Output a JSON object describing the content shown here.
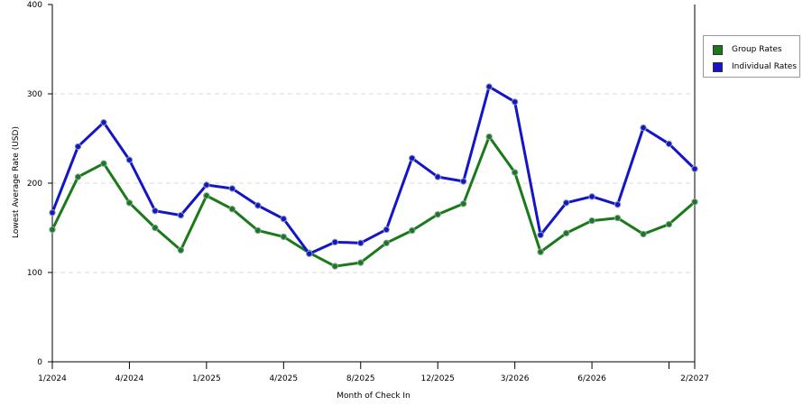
{
  "chart_data": {
    "type": "line",
    "xlabel": "Month of Check In",
    "ylabel": "Lowest Average Rate (USD)",
    "ylim": [
      0,
      400
    ],
    "yticks": [
      0,
      100,
      200,
      300,
      400
    ],
    "x_tick_labels": [
      "1/2024",
      "4/2024",
      "1/2025",
      "4/2025",
      "8/2025",
      "12/2025",
      "3/2026",
      "6/2026",
      "2/2027"
    ],
    "grid": "horizontal dashed",
    "legend_position": "right",
    "series": [
      {
        "name": "Group Rates",
        "color": "#1a7a1a",
        "values": [
          148,
          207,
          222,
          178,
          150,
          125,
          186,
          171,
          147,
          140,
          122,
          107,
          111,
          133,
          147,
          165,
          177,
          252,
          212,
          123,
          144,
          158,
          161,
          143,
          154,
          179
        ]
      },
      {
        "name": "Individual Rates",
        "color": "#1414c8",
        "values": [
          167,
          241,
          268,
          226,
          169,
          164,
          198,
          194,
          175,
          160,
          121,
          134,
          133,
          148,
          228,
          207,
          202,
          308,
          291,
          142,
          178,
          185,
          176,
          262,
          244,
          216
        ]
      }
    ]
  }
}
